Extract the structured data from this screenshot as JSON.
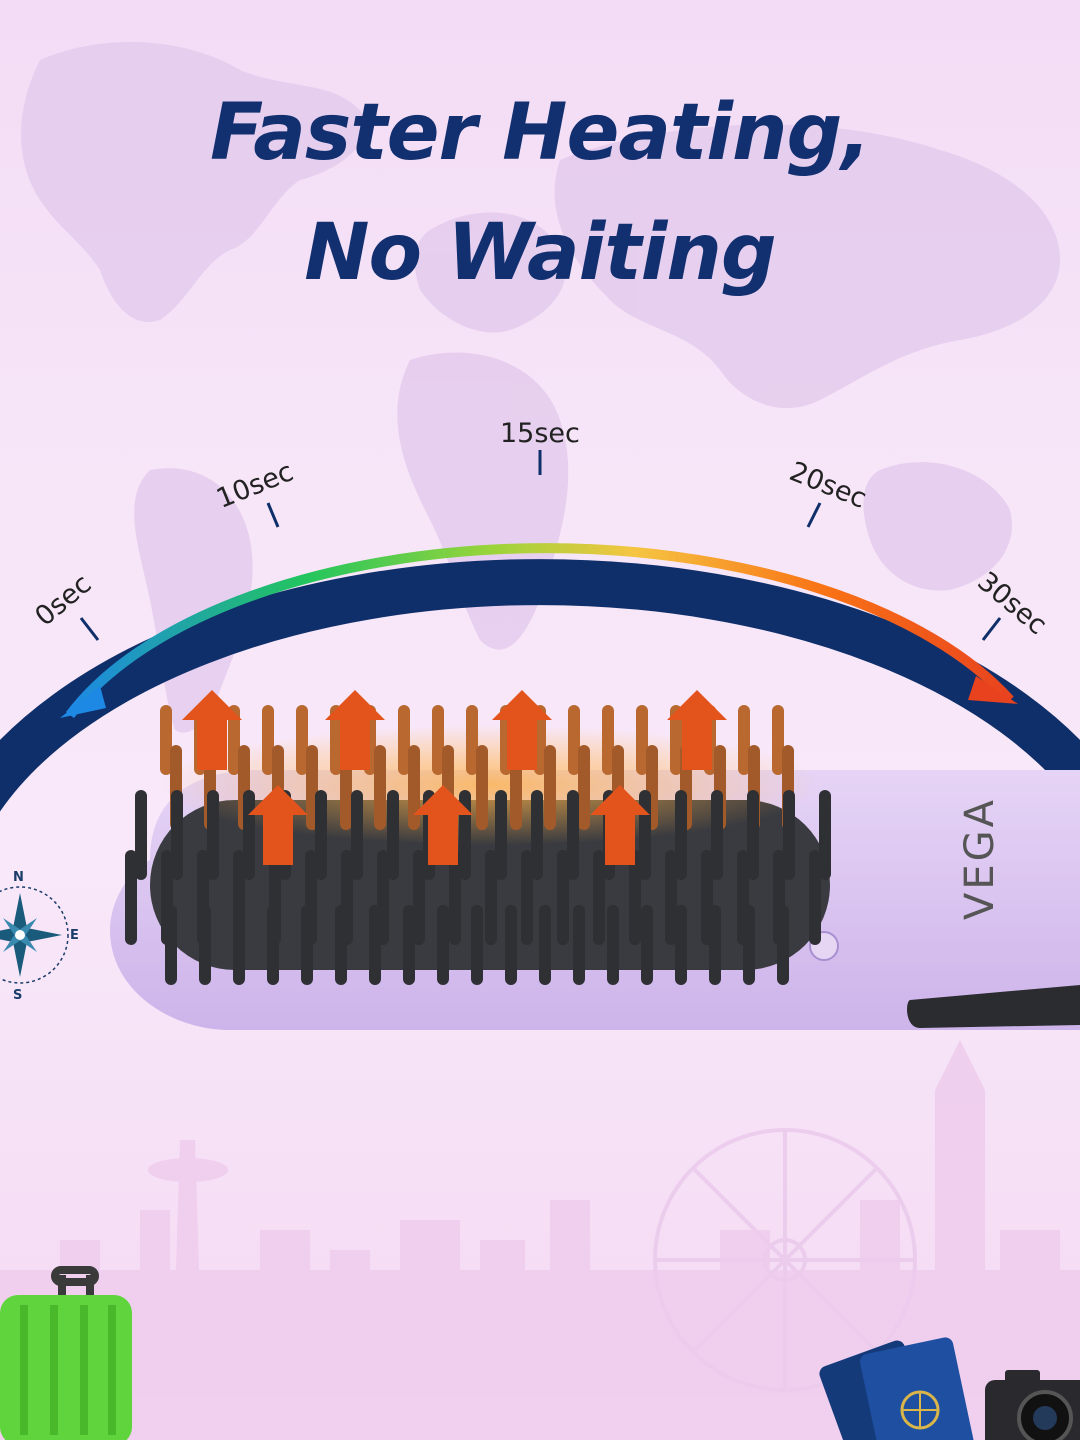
{
  "headline": {
    "line1": "Faster Heating,",
    "line2": "No Waiting"
  },
  "timer_arc": {
    "ticks": [
      {
        "label": "0sec",
        "seconds": 0
      },
      {
        "label": "10sec",
        "seconds": 10
      },
      {
        "label": "15sec",
        "seconds": 15
      },
      {
        "label": "20sec",
        "seconds": 20
      },
      {
        "label": "30sec",
        "seconds": 30
      }
    ],
    "gradient_colors": [
      "#1e88e5",
      "#22c55e",
      "#9bd43a",
      "#f5c542",
      "#f97316",
      "#e8431e"
    ]
  },
  "product": {
    "brand": "VEGA",
    "body_color": "#d8c2ee",
    "bristle_color": "#2f3034",
    "heat_arrow_color": "#e2541c"
  },
  "compass": {
    "n": "N",
    "e": "E",
    "s": "S"
  },
  "colors": {
    "headline": "#12306f",
    "arc_band": "#0f2f6a"
  },
  "decor": {
    "luggage_icon": "suitcase-icon",
    "passport_icon": "passport-icon",
    "camera_icon": "camera-icon"
  }
}
